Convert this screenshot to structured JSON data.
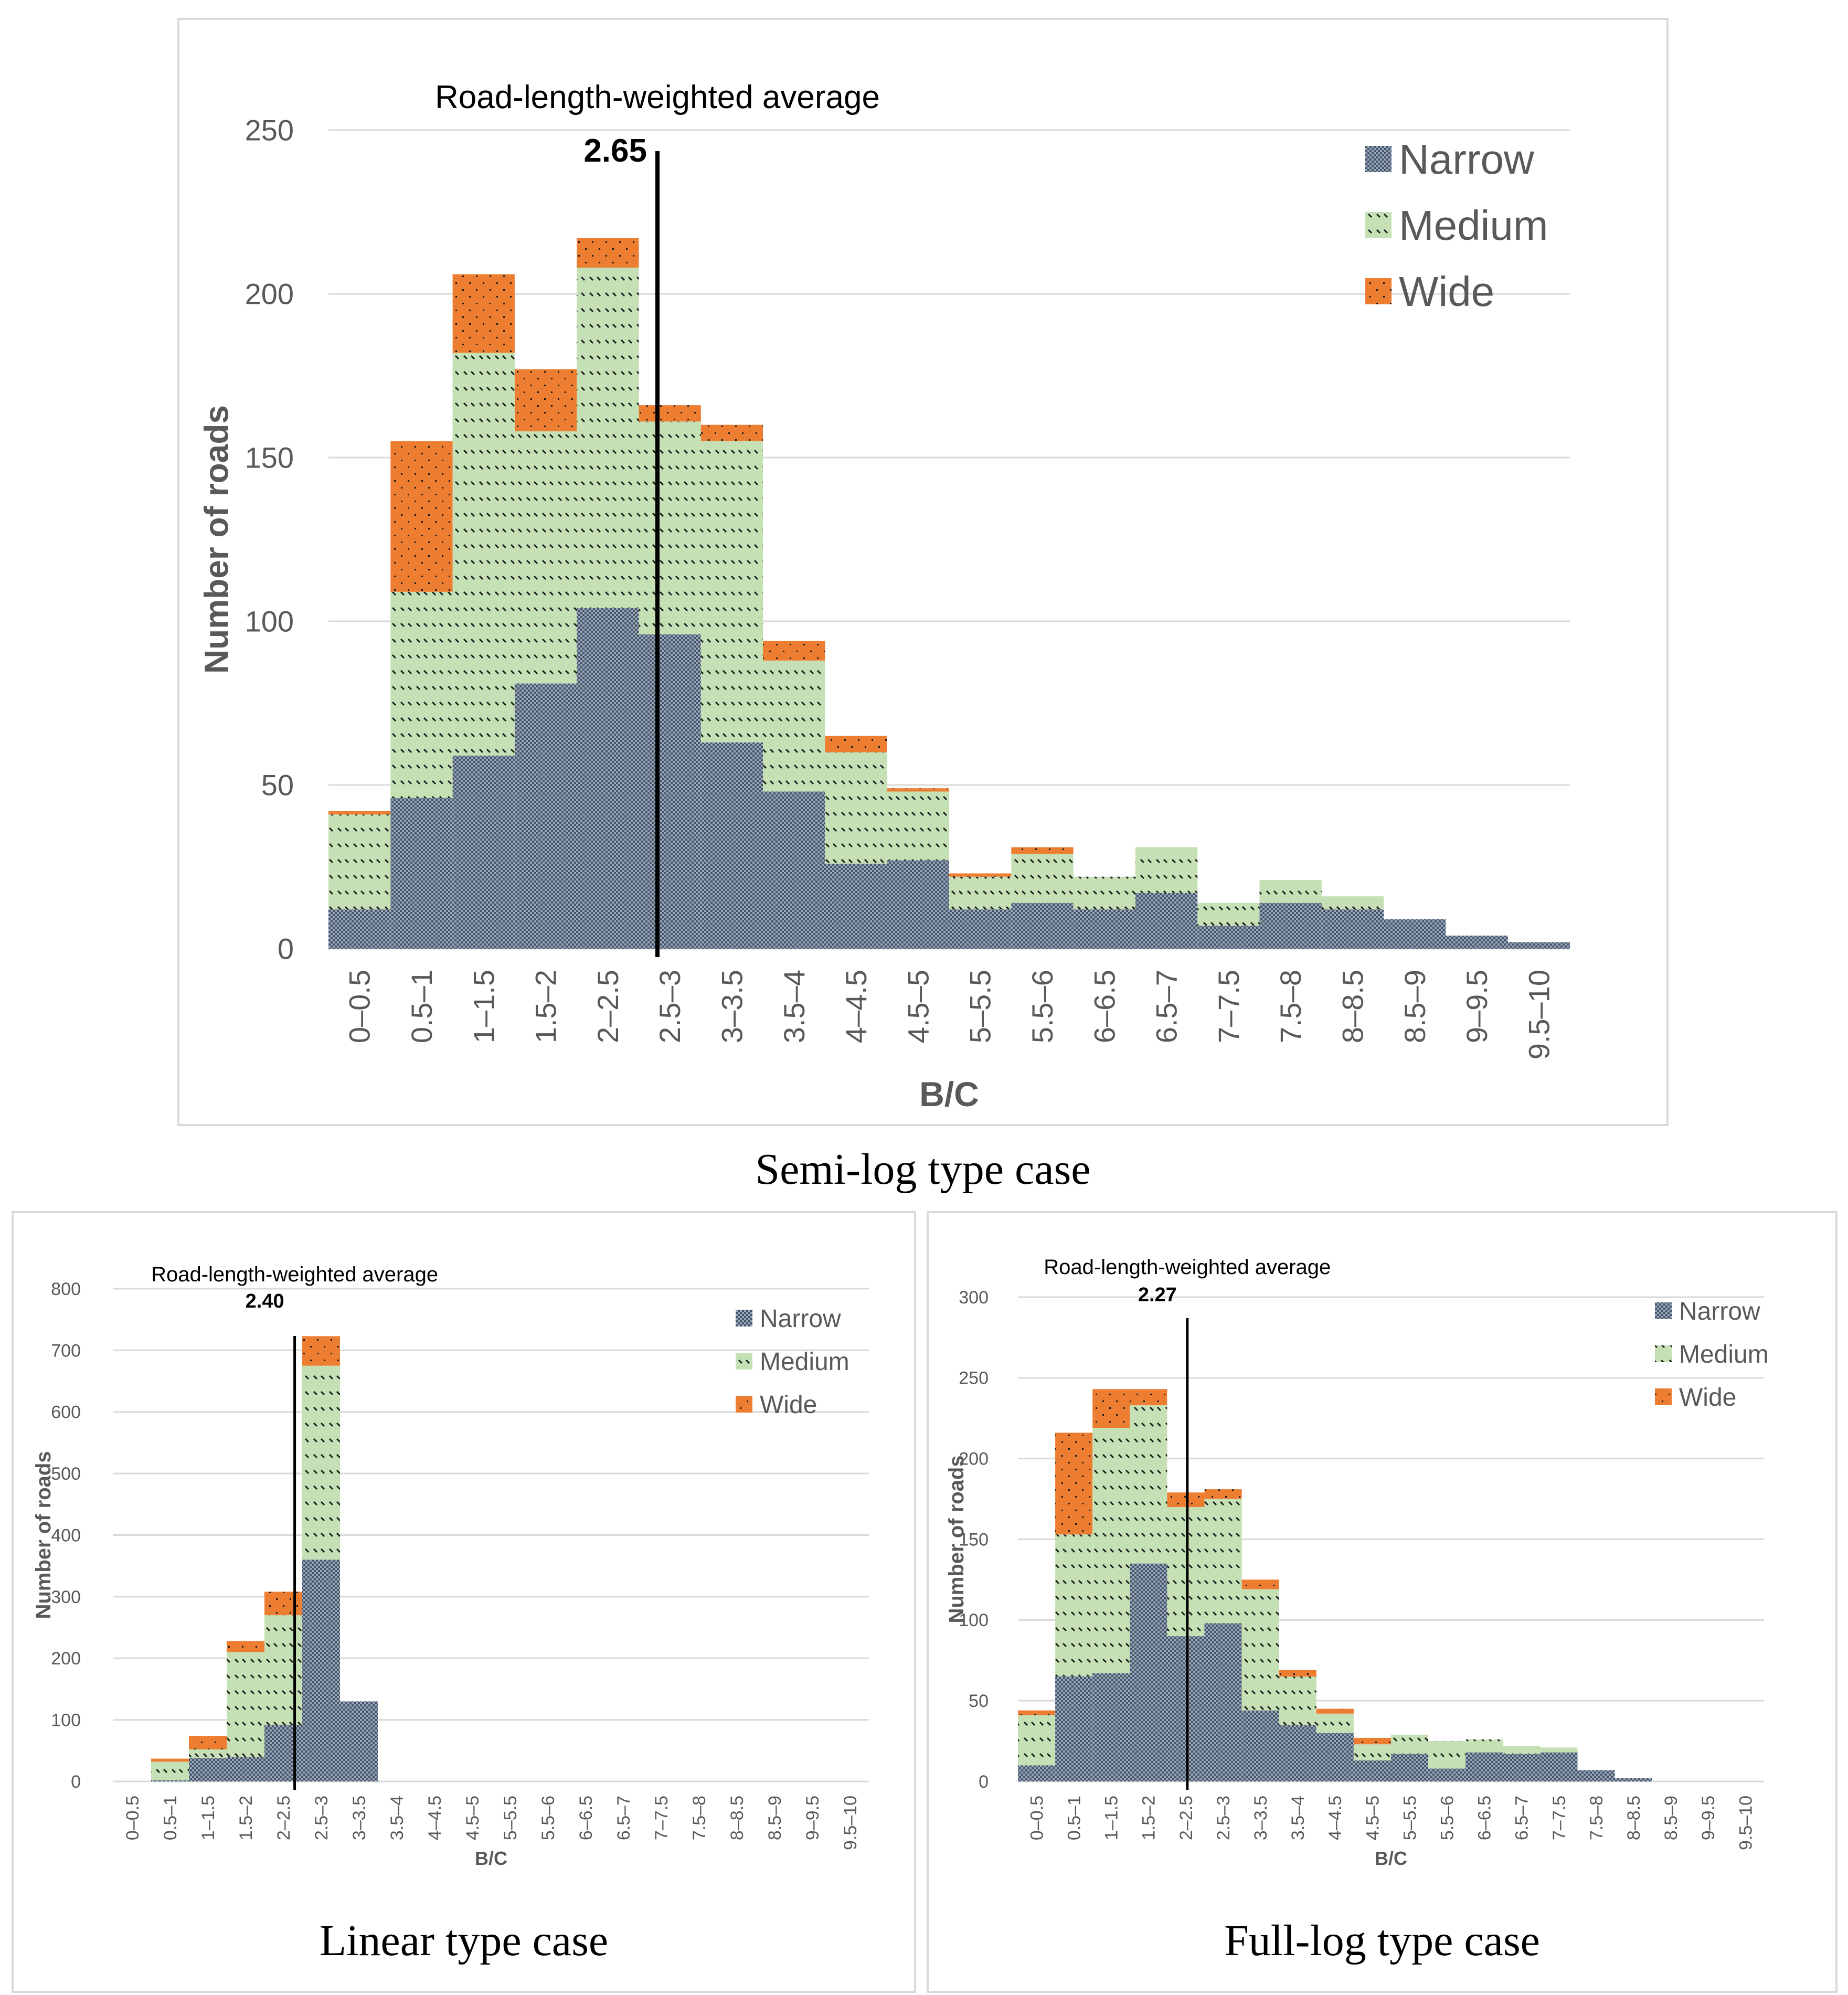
{
  "colors": {
    "narrow": "#44546a",
    "medium": "#c5e0b4",
    "wide": "#ed7d31",
    "grid": "#d9d9d9",
    "axis_text": "#595959"
  },
  "captions": {
    "semi": "Semi-log type case",
    "linear": "Linear type case",
    "full": "Full-log type case"
  },
  "chart_data": [
    {
      "id": "semi",
      "type": "bar",
      "stacked": true,
      "title": "",
      "xlabel": "B/C",
      "ylabel": "Number of roads",
      "ylim": [
        0,
        250
      ],
      "yticks": [
        0,
        50,
        100,
        150,
        200,
        250
      ],
      "grid": true,
      "legend_position": "top-right",
      "categories": [
        "0–0.5",
        "0.5–1",
        "1–1.5",
        "1.5–2",
        "2–2.5",
        "2.5–3",
        "3–3.5",
        "3.5–4",
        "4–4.5",
        "4.5–5",
        "5–5.5",
        "5.5–6",
        "6–6.5",
        "6.5–7",
        "7–7.5",
        "7.5–8",
        "8–8.5",
        "8.5–9",
        "9–9.5",
        "9.5–10"
      ],
      "series": [
        {
          "name": "Narrow",
          "values": [
            12,
            46,
            59,
            81,
            104,
            96,
            63,
            48,
            26,
            27,
            12,
            14,
            12,
            17,
            7,
            14,
            12,
            9,
            4,
            2
          ]
        },
        {
          "name": "Medium",
          "values": [
            29,
            63,
            123,
            77,
            104,
            65,
            92,
            40,
            34,
            21,
            10,
            15,
            10,
            14,
            7,
            7,
            4,
            0,
            0,
            0
          ]
        },
        {
          "name": "Wide",
          "values": [
            1,
            46,
            24,
            19,
            9,
            5,
            5,
            6,
            5,
            1,
            1,
            2,
            0,
            0,
            0,
            0,
            0,
            0,
            0,
            0
          ]
        }
      ],
      "reference_line": {
        "label": "Road-length-weighted average",
        "value_label": "2.65",
        "x": 2.65
      }
    },
    {
      "id": "linear",
      "type": "bar",
      "stacked": true,
      "title": "",
      "xlabel": "B/C",
      "ylabel": "Number of roads",
      "ylim": [
        0,
        800
      ],
      "yticks": [
        0,
        100,
        200,
        300,
        400,
        500,
        600,
        700,
        800
      ],
      "grid": true,
      "legend_position": "top-right",
      "categories": [
        "0–0.5",
        "0.5–1",
        "1–1.5",
        "1.5–2",
        "2–2.5",
        "2.5–3",
        "3–3.5",
        "3.5–4",
        "4–4.5",
        "4.5–5",
        "5–5.5",
        "5.5–6",
        "6–6.5",
        "6.5–7",
        "7–7.5",
        "7.5–8",
        "8–8.5",
        "8.5–9",
        "9–9.5",
        "9.5–10"
      ],
      "series": [
        {
          "name": "Narrow",
          "values": [
            0,
            2,
            38,
            40,
            92,
            360,
            130,
            0,
            0,
            0,
            0,
            0,
            0,
            0,
            0,
            0,
            0,
            0,
            0,
            0
          ]
        },
        {
          "name": "Medium",
          "values": [
            0,
            30,
            14,
            170,
            178,
            315,
            0,
            0,
            0,
            0,
            0,
            0,
            0,
            0,
            0,
            0,
            0,
            0,
            0,
            0
          ]
        },
        {
          "name": "Wide",
          "values": [
            0,
            5,
            22,
            18,
            38,
            48,
            0,
            0,
            0,
            0,
            0,
            0,
            0,
            0,
            0,
            0,
            0,
            0,
            0,
            0
          ]
        }
      ],
      "reference_line": {
        "label": "Road-length-weighted average",
        "value_label": "2.40",
        "x": 2.4
      }
    },
    {
      "id": "full",
      "type": "bar",
      "stacked": true,
      "title": "",
      "xlabel": "B/C",
      "ylabel": "Number of roads",
      "ylim": [
        0,
        300
      ],
      "yticks": [
        0,
        50,
        100,
        150,
        200,
        250,
        300
      ],
      "grid": true,
      "legend_position": "top-right",
      "categories": [
        "0–0.5",
        "0.5–1",
        "1–1.5",
        "1.5–2",
        "2–2.5",
        "2.5–3",
        "3–3.5",
        "3.5–4",
        "4–4.5",
        "4.5–5",
        "5–5.5",
        "5.5–6",
        "6–6.5",
        "6.5–7",
        "7–7.5",
        "7.5–8",
        "8–8.5",
        "8.5–9",
        "9–9.5",
        "9.5–10"
      ],
      "series": [
        {
          "name": "Narrow",
          "values": [
            10,
            65,
            67,
            135,
            90,
            98,
            44,
            35,
            30,
            13,
            17,
            8,
            18,
            17,
            18,
            7,
            2,
            0,
            0,
            0
          ]
        },
        {
          "name": "Medium",
          "values": [
            31,
            88,
            152,
            98,
            80,
            77,
            75,
            30,
            12,
            10,
            12,
            17,
            8,
            5,
            3,
            0,
            0,
            0,
            0,
            0
          ]
        },
        {
          "name": "Wide",
          "values": [
            3,
            63,
            24,
            10,
            9,
            6,
            6,
            4,
            3,
            4,
            0,
            0,
            0,
            0,
            0,
            0,
            0,
            0,
            0,
            0
          ]
        }
      ],
      "reference_line": {
        "label": "Road-length-weighted average",
        "value_label": "2.27",
        "x": 2.27
      }
    }
  ]
}
